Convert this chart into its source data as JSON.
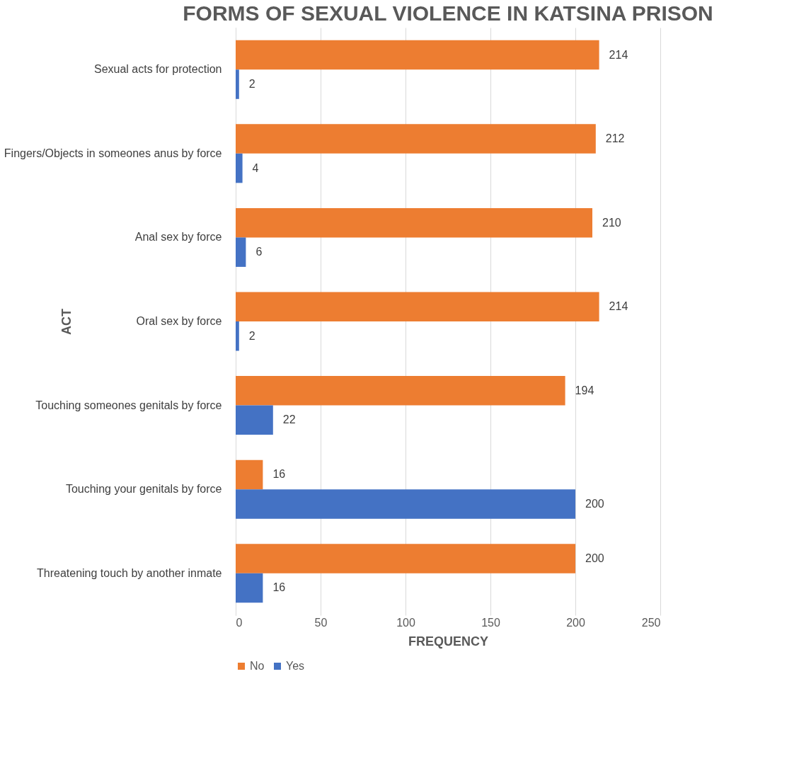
{
  "chart_data": {
    "type": "bar",
    "orientation": "horizontal",
    "title": "FORMS OF SEXUAL VIOLENCE IN KATSINA PRISON",
    "xlabel": "FREQUENCY",
    "ylabel": "ACT",
    "categories": [
      "Sexual acts for protection",
      "Fingers/Objects in someones anus by force",
      "Anal sex by force",
      "Oral sex by force",
      "Touching someones genitals by force",
      "Touching your genitals by force",
      "Threatening touch by another inmate"
    ],
    "series": [
      {
        "name": "No",
        "color": "#ed7d31",
        "values": [
          214,
          212,
          210,
          214,
          194,
          16,
          200
        ]
      },
      {
        "name": "Yes",
        "color": "#4472c4",
        "values": [
          2,
          4,
          6,
          2,
          22,
          200,
          16
        ]
      }
    ],
    "xlim": [
      0,
      250
    ],
    "xticks": [
      0,
      50,
      100,
      150,
      200,
      250
    ],
    "grid": "x",
    "legend": "bottom",
    "data_labels": true
  }
}
